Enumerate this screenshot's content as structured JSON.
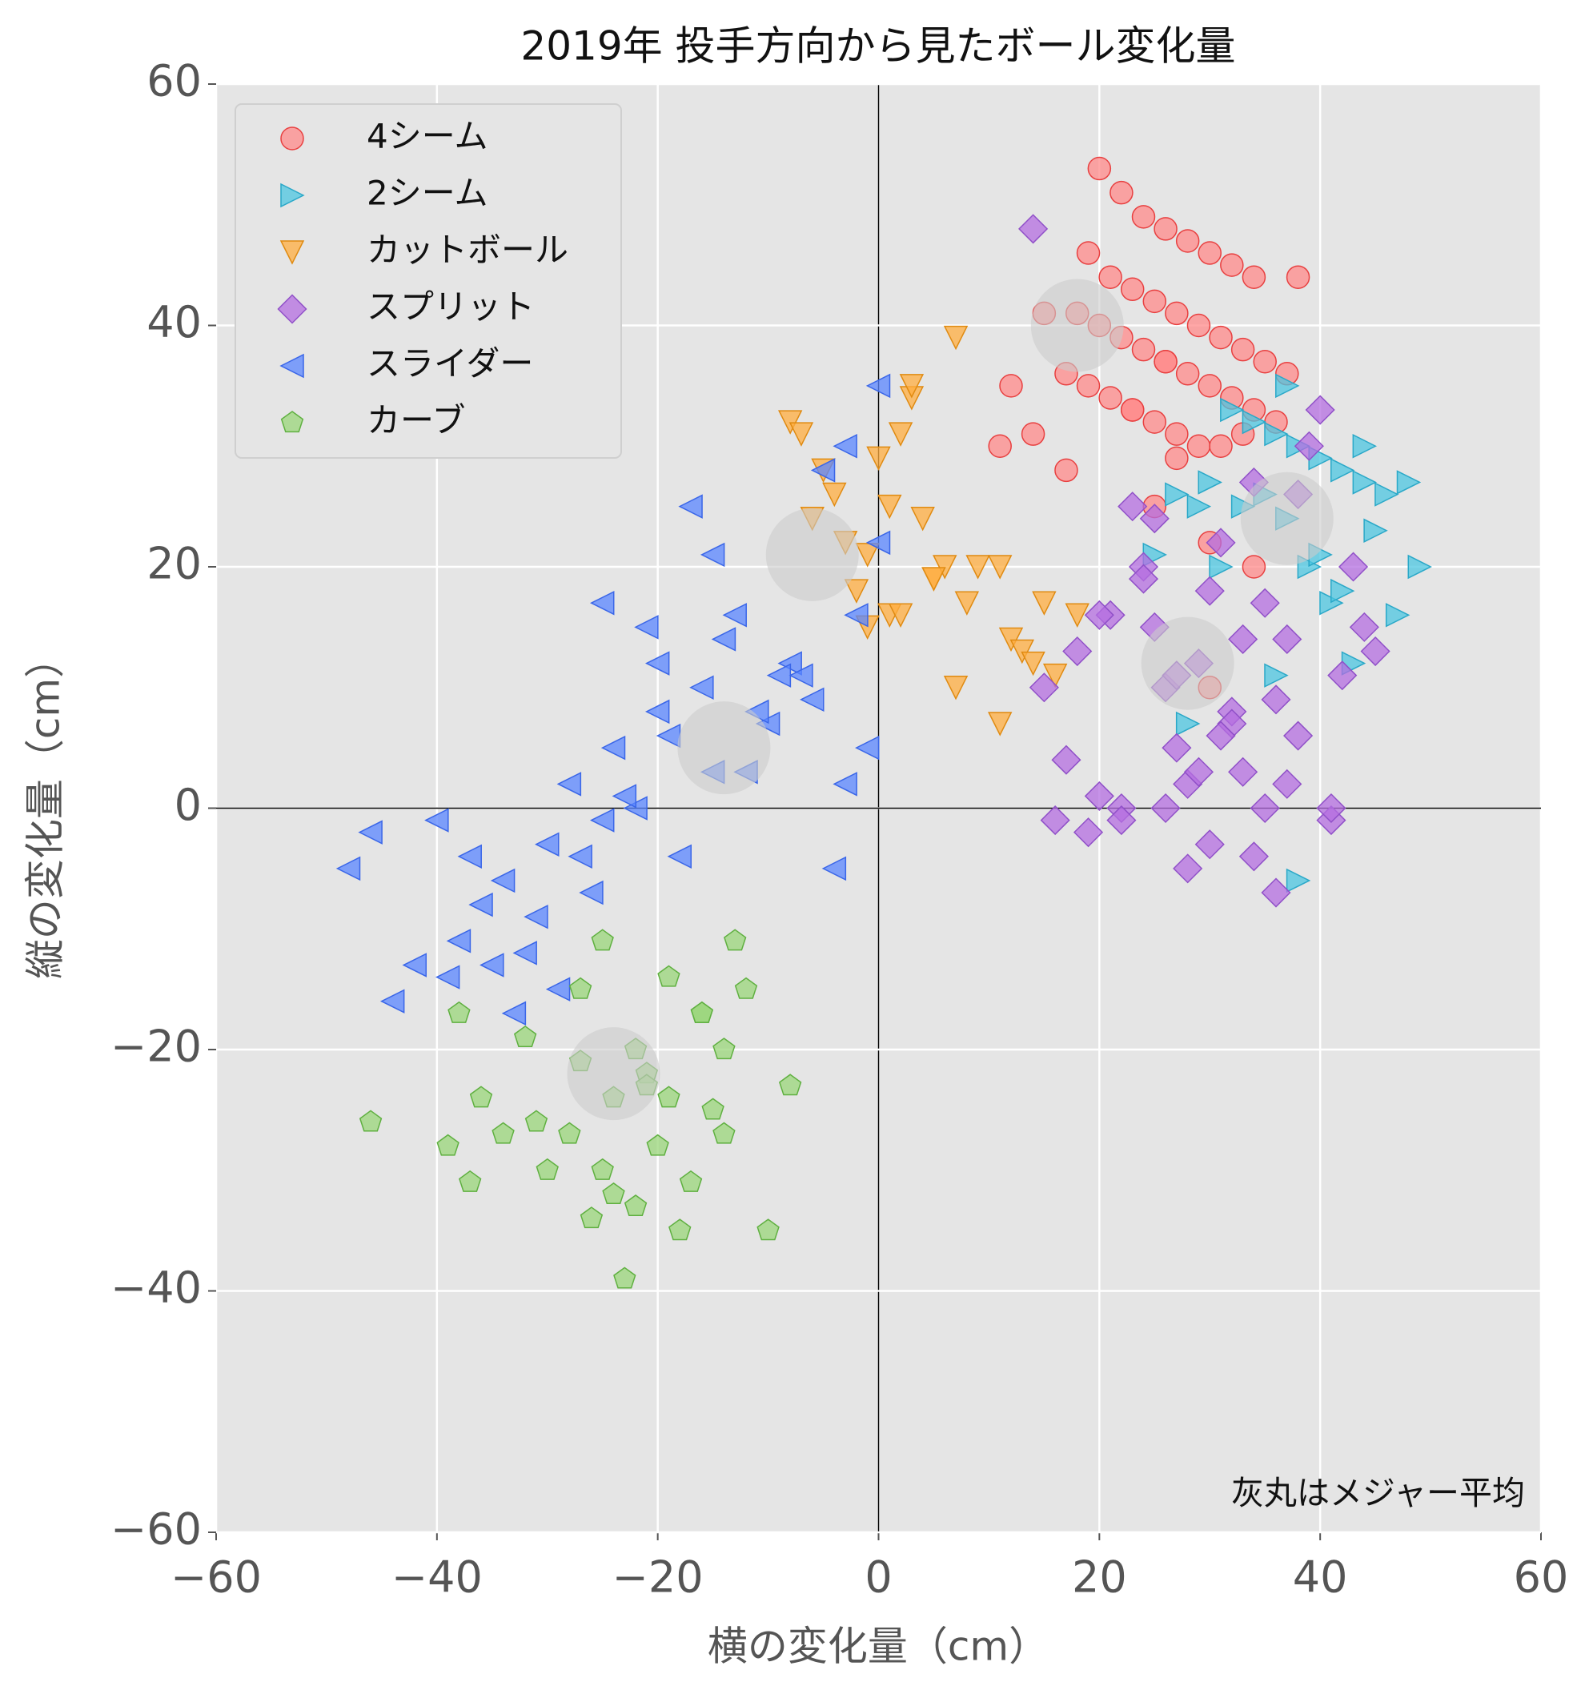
{
  "chart_data": {
    "type": "scatter",
    "title": "2019年 投手方向から見たボール変化量",
    "x_label": "横の変化量（cm）",
    "y_label": "縦の変化量（cm）",
    "annotation": "灰丸はメジャー平均",
    "xlim": [
      -60,
      60
    ],
    "ylim": [
      -60,
      60
    ],
    "xticks": [
      {
        "value": -60,
        "label": "−60"
      },
      {
        "value": -40,
        "label": "−40"
      },
      {
        "value": -20,
        "label": "−20"
      },
      0,
      20,
      40,
      60
    ],
    "yticks": [
      {
        "value": -60,
        "label": "−60"
      },
      {
        "value": -40,
        "label": "−40"
      },
      {
        "value": -20,
        "label": "−20"
      },
      0,
      20,
      40,
      60
    ],
    "grid": true,
    "legend": "upper left",
    "series": [
      {
        "name": "4シーム",
        "color": "#ff8a8a",
        "edge": "#e84040",
        "marker": "o",
        "x": [
          20,
          22,
          24,
          26,
          28,
          30,
          32,
          34,
          19,
          21,
          23,
          25,
          27,
          29,
          31,
          33,
          35,
          37,
          18,
          20,
          22,
          24,
          26,
          28,
          30,
          32,
          34,
          36,
          17,
          19,
          21,
          23,
          25,
          27,
          29,
          31,
          33,
          15,
          12,
          11,
          14,
          17,
          25,
          27,
          30,
          34,
          30,
          26,
          23,
          38
        ],
        "values": [
          53,
          51,
          49,
          48,
          47,
          46,
          45,
          44,
          46,
          44,
          43,
          42,
          41,
          40,
          39,
          38,
          37,
          36,
          41,
          40,
          39,
          38,
          37,
          36,
          35,
          34,
          33,
          32,
          36,
          35,
          34,
          33,
          32,
          31,
          30,
          30,
          31,
          41,
          35,
          30,
          31,
          28,
          25,
          29,
          22,
          20,
          10,
          37,
          33,
          44
        ]
      },
      {
        "name": "2シーム",
        "color": "#4cc6e0",
        "edge": "#2aa8c8",
        "marker": ">",
        "x": [
          32,
          34,
          36,
          38,
          40,
          42,
          44,
          46,
          48,
          49,
          47,
          43,
          41,
          39,
          37,
          35,
          33,
          31,
          29,
          27,
          25,
          36,
          38,
          40,
          44,
          37,
          30,
          42,
          45,
          28
        ],
        "values": [
          33,
          32,
          31,
          30,
          29,
          28,
          27,
          26,
          27,
          20,
          16,
          12,
          17,
          20,
          24,
          26,
          25,
          20,
          25,
          26,
          21,
          11,
          -6,
          21,
          30,
          35,
          27,
          18,
          23,
          7
        ]
      },
      {
        "name": "カットボール",
        "color": "#ffae40",
        "edge": "#e08a10",
        "marker": "v",
        "x": [
          -8,
          -7,
          -5,
          -4,
          -3,
          -2,
          -1,
          0,
          1,
          2,
          3,
          4,
          5,
          6,
          7,
          8,
          9,
          11,
          12,
          13,
          14,
          15,
          16,
          18,
          3,
          1,
          -6,
          -1,
          7,
          11,
          2,
          5
        ],
        "values": [
          32,
          31,
          28,
          26,
          22,
          18,
          15,
          29,
          25,
          31,
          34,
          24,
          19,
          20,
          10,
          17,
          20,
          7,
          14,
          13,
          12,
          17,
          11,
          16,
          35,
          16,
          24,
          21,
          39,
          20,
          16,
          19
        ]
      },
      {
        "name": "スプリット",
        "color": "#b46ee0",
        "edge": "#9050c8",
        "marker": "D",
        "x": [
          14,
          15,
          17,
          19,
          20,
          21,
          22,
          23,
          24,
          25,
          26,
          27,
          28,
          29,
          30,
          31,
          32,
          33,
          34,
          35,
          36,
          37,
          38,
          39,
          40,
          41,
          42,
          43,
          44,
          45,
          28,
          30,
          32,
          34,
          36,
          38,
          22,
          24,
          26,
          29,
          31,
          33,
          35,
          37,
          25,
          27,
          18,
          20,
          16,
          41
        ],
        "values": [
          48,
          10,
          4,
          -2,
          1,
          16,
          0,
          25,
          20,
          15,
          10,
          5,
          2,
          12,
          18,
          22,
          8,
          3,
          -4,
          0,
          -7,
          14,
          6,
          30,
          33,
          -1,
          11,
          20,
          15,
          13,
          -5,
          -3,
          7,
          27,
          9,
          26,
          -1,
          19,
          0,
          3,
          6,
          14,
          17,
          2,
          24,
          11,
          13,
          16,
          -1,
          0
        ]
      },
      {
        "name": "スライダー",
        "color": "#5a86ff",
        "edge": "#3a66e8",
        "marker": "<",
        "x": [
          -48,
          -46,
          -44,
          -42,
          -40,
          -38,
          -36,
          -34,
          -32,
          -30,
          -28,
          -26,
          -24,
          -22,
          -20,
          -18,
          -16,
          -14,
          -12,
          -10,
          -8,
          -6,
          -4,
          -2,
          0,
          -39,
          -35,
          -31,
          -27,
          -23,
          -19,
          -15,
          -11,
          -7,
          -3,
          -37,
          -33,
          -29,
          -25,
          -21,
          -17,
          -13,
          -9,
          -5,
          -1,
          -20,
          -25,
          -15,
          0,
          -3
        ],
        "values": [
          -5,
          -2,
          -16,
          -13,
          -1,
          -11,
          -8,
          -6,
          -12,
          -3,
          2,
          -7,
          5,
          0,
          8,
          -4,
          10,
          14,
          3,
          7,
          12,
          9,
          -5,
          16,
          35,
          -14,
          -13,
          -9,
          -4,
          1,
          6,
          3,
          8,
          11,
          30,
          -4,
          -17,
          -15,
          -1,
          15,
          25,
          16,
          11,
          28,
          5,
          12,
          17,
          21,
          22,
          2
        ]
      },
      {
        "name": "カーブ",
        "color": "#9ad67a",
        "edge": "#5fb040",
        "marker": "p",
        "x": [
          -46,
          -39,
          -38,
          -37,
          -36,
          -34,
          -32,
          -31,
          -30,
          -28,
          -27,
          -26,
          -25,
          -24,
          -23,
          -22,
          -21,
          -20,
          -19,
          -18,
          -17,
          -16,
          -15,
          -14,
          -13,
          -12,
          -10,
          -8,
          -27,
          -24,
          -22,
          -19,
          -16,
          -14,
          -25,
          -21
        ],
        "values": [
          -26,
          -28,
          -17,
          -31,
          -24,
          -27,
          -19,
          -26,
          -30,
          -27,
          -15,
          -34,
          -11,
          -32,
          -39,
          -33,
          -22,
          -28,
          -14,
          -35,
          -31,
          -17,
          -25,
          -20,
          -11,
          -15,
          -35,
          -23,
          -21,
          -24,
          -20,
          -24,
          -17,
          -27,
          -30,
          -23
        ]
      }
    ],
    "averages": {
      "color": "#cccccc",
      "x": [
        18,
        37,
        28,
        -6,
        -14,
        -24
      ],
      "values": [
        40,
        24,
        12,
        21,
        5,
        -22
      ]
    }
  }
}
